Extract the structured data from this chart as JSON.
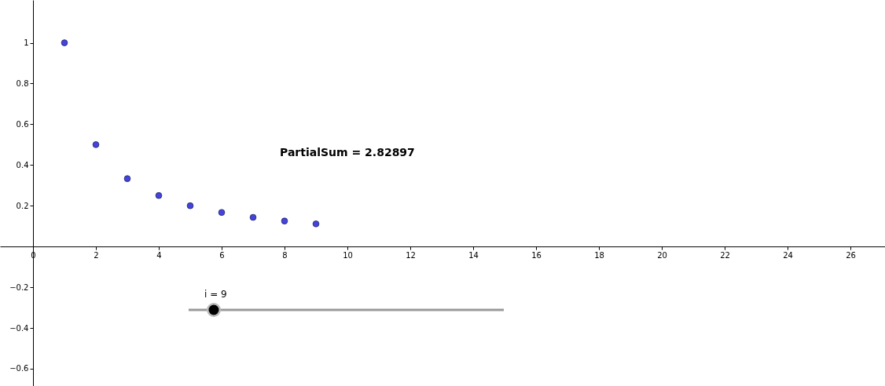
{
  "chart_data": {
    "type": "scatter",
    "x": [
      1,
      2,
      3,
      4,
      5,
      6,
      7,
      8,
      9
    ],
    "series": [
      {
        "color": "#4444dd",
        "values": [
          1,
          0.5,
          0.333,
          0.25,
          0.2,
          0.167,
          0.143,
          0.125,
          0.111
        ]
      }
    ],
    "xlim": [
      -1.05,
      27.1
    ],
    "ylim": [
      -0.685,
      1.21
    ],
    "xticks": [
      0,
      2,
      4,
      6,
      8,
      10,
      12,
      14,
      16,
      18,
      20,
      22,
      24,
      26
    ],
    "yticks": [
      -0.6,
      -0.4,
      -0.2,
      0.2,
      0.4,
      0.6,
      0.8,
      1
    ],
    "marker": "circle",
    "grid": false,
    "annotations": [
      "PartialSum = 2.82897",
      "i = 9"
    ]
  }
}
